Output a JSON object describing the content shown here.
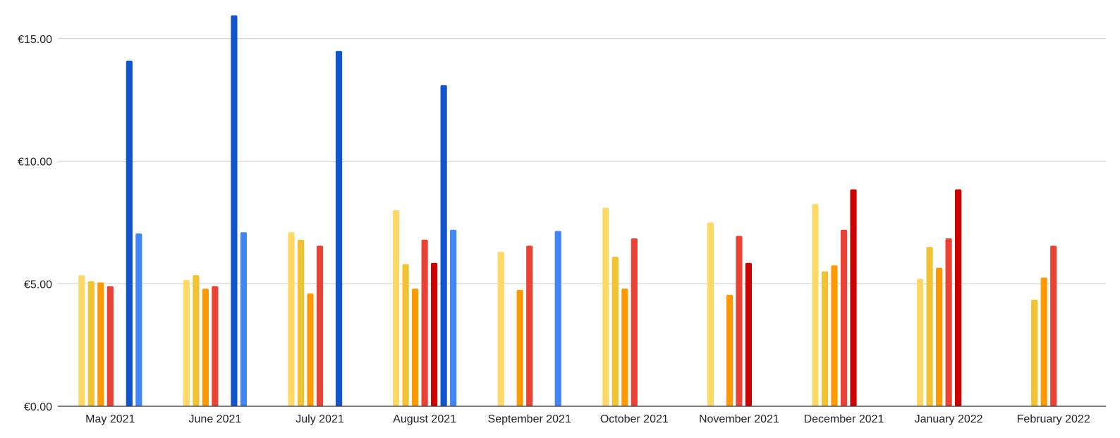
{
  "chart_data": {
    "type": "bar",
    "title": "",
    "xlabel": "",
    "ylabel": "",
    "ylim": [
      0,
      16
    ],
    "yticks": [
      0,
      5,
      10,
      15
    ],
    "ytick_labels": [
      "€0.00",
      "€5.00",
      "€10.00",
      "€15.00"
    ],
    "grid": true,
    "legend": "none",
    "categories": [
      "May 2021",
      "June 2021",
      "July 2021",
      "August 2021",
      "September 2021",
      "October 2021",
      "November 2021",
      "December 2021",
      "January 2022",
      "February 2022"
    ],
    "series": [
      {
        "color": "#ffd966",
        "values": [
          5.35,
          5.15,
          7.1,
          8.0,
          6.3,
          8.1,
          7.5,
          8.25,
          5.2,
          null
        ]
      },
      {
        "color": "#f1c232",
        "values": [
          5.1,
          5.35,
          6.8,
          5.8,
          null,
          6.1,
          null,
          5.5,
          6.5,
          4.35
        ]
      },
      {
        "color": "#ff9900",
        "values": [
          5.05,
          4.8,
          4.6,
          4.8,
          4.75,
          4.8,
          4.55,
          5.75,
          5.65,
          5.25
        ]
      },
      {
        "color": "#ea4335",
        "values": [
          4.9,
          4.9,
          6.55,
          6.8,
          6.55,
          6.85,
          6.95,
          7.2,
          6.85,
          6.55
        ]
      },
      {
        "color": "#cc0000",
        "values": [
          null,
          null,
          null,
          5.85,
          null,
          null,
          5.85,
          8.85,
          8.85,
          null
        ]
      },
      {
        "color": "#1155cc",
        "values": [
          14.1,
          15.95,
          14.5,
          13.1,
          null,
          null,
          null,
          null,
          null,
          null
        ]
      },
      {
        "color": "#4285f4",
        "values": [
          7.05,
          7.1,
          null,
          7.2,
          7.15,
          null,
          null,
          null,
          null,
          null
        ]
      }
    ]
  }
}
